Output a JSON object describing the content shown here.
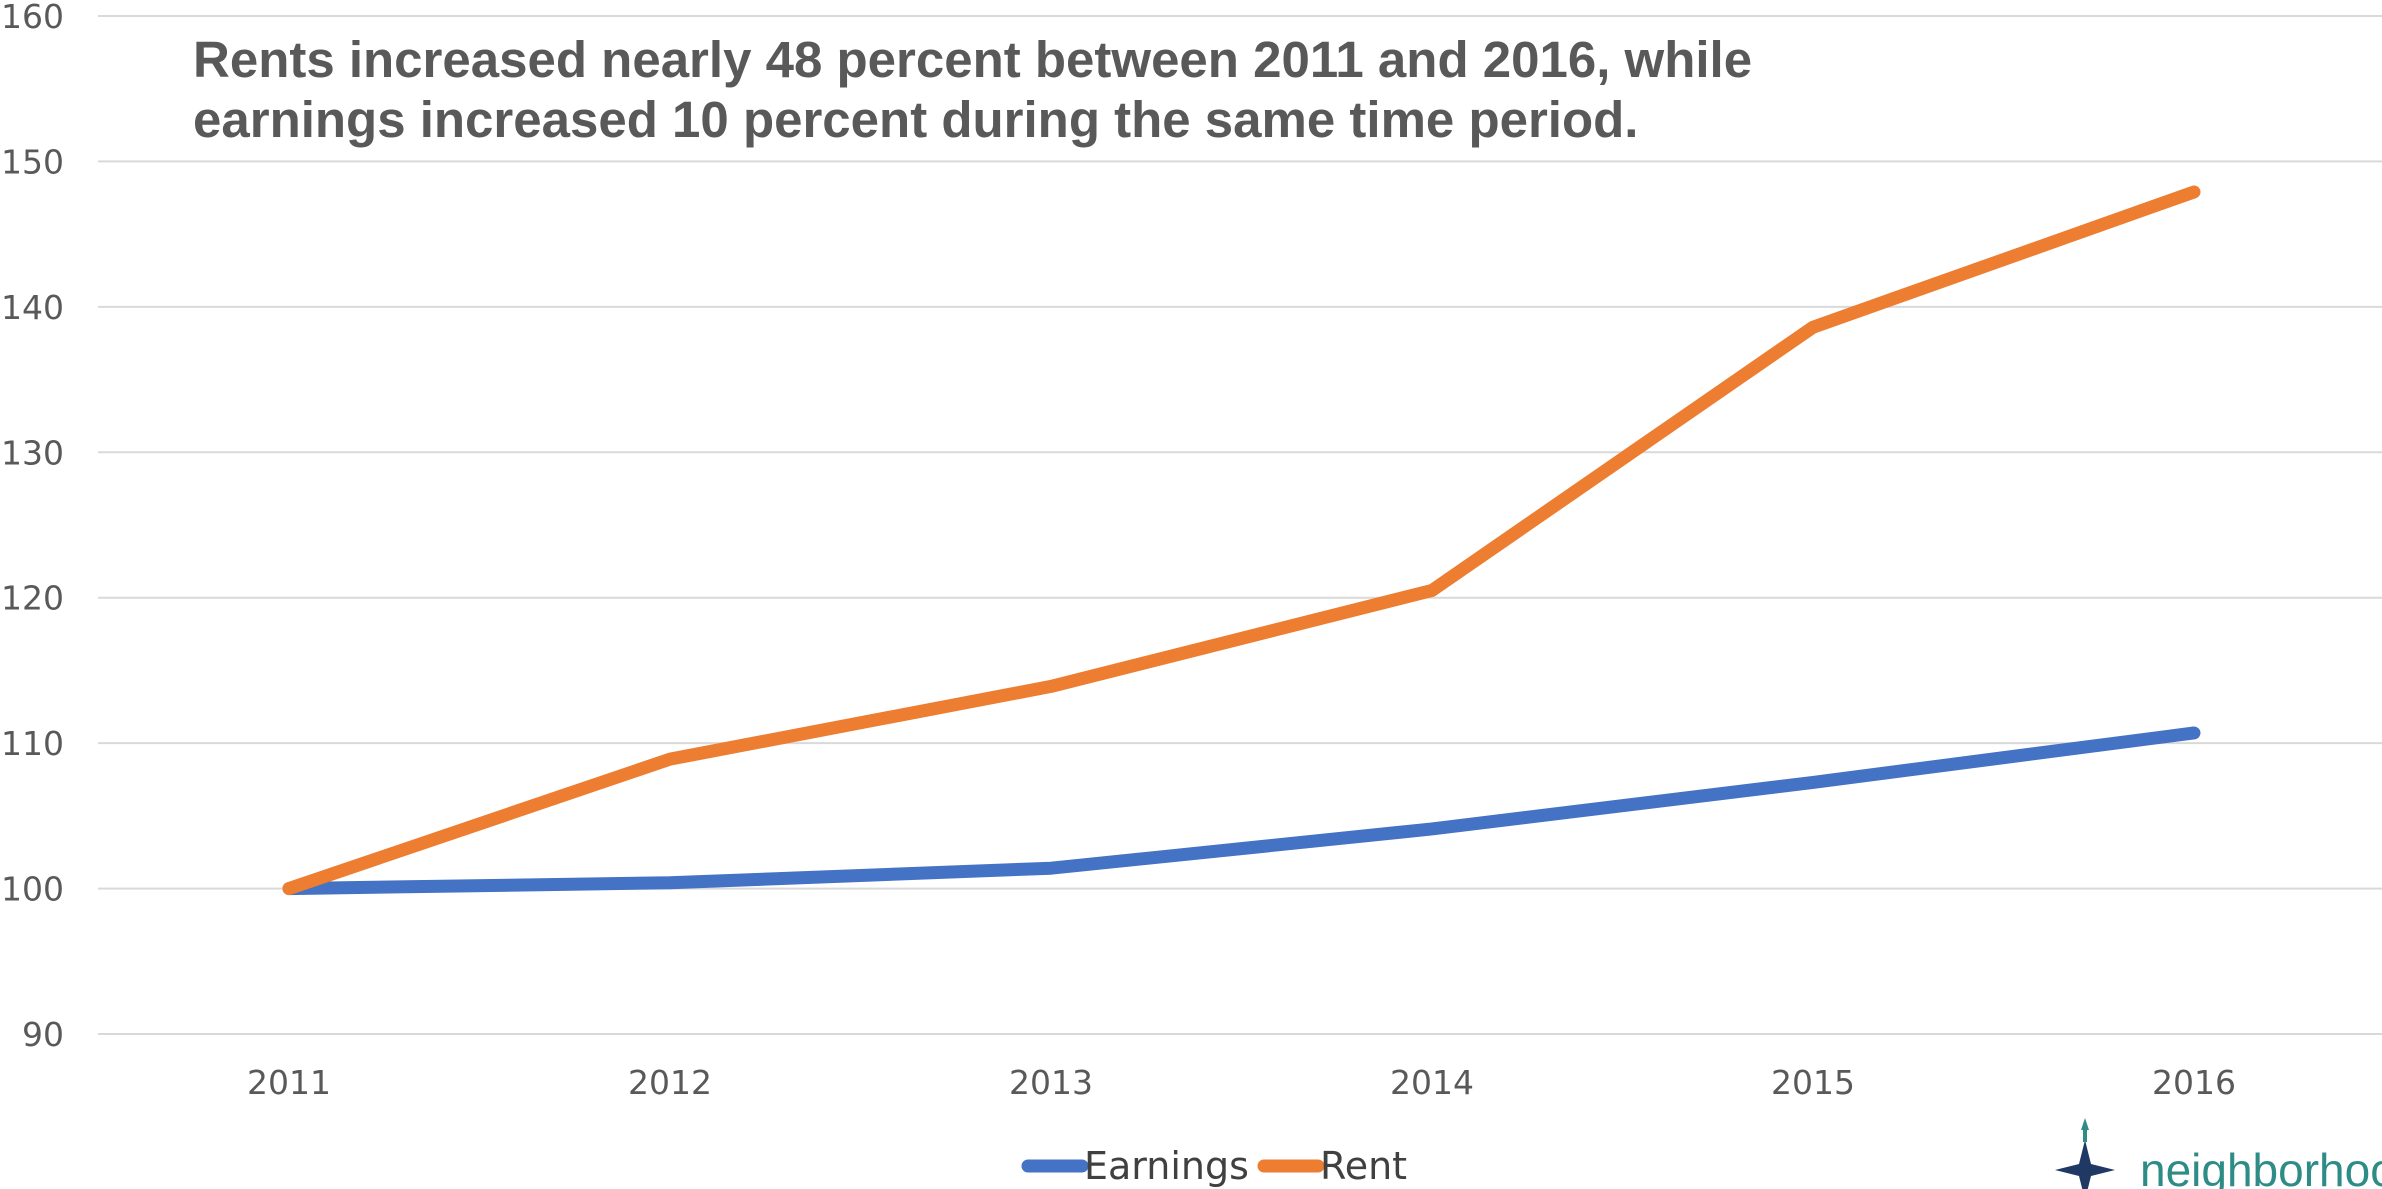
{
  "chart_data": {
    "type": "line",
    "title": "Rents increased nearly 48 percent between 2011 and 2016, while earnings increased 10 percent during the same time period.",
    "xlabel": "",
    "ylabel": "",
    "categories": [
      "2011",
      "2012",
      "2013",
      "2014",
      "2015",
      "2016"
    ],
    "ylim": [
      90,
      160
    ],
    "yticks": [
      90,
      100,
      110,
      120,
      130,
      140,
      150,
      160
    ],
    "grid": true,
    "legend_position": "bottom",
    "series": [
      {
        "name": "Earnings",
        "values": [
          100,
          100.4,
          101.4,
          104.1,
          107.3,
          110.7
        ],
        "color": "#4472C4"
      },
      {
        "name": "Rent",
        "values": [
          100,
          108.9,
          113.9,
          120.5,
          138.6,
          147.9
        ],
        "color": "#ED7D31"
      }
    ]
  },
  "logo": {
    "text": "neighborhoo",
    "icon": "compass-star-icon"
  }
}
